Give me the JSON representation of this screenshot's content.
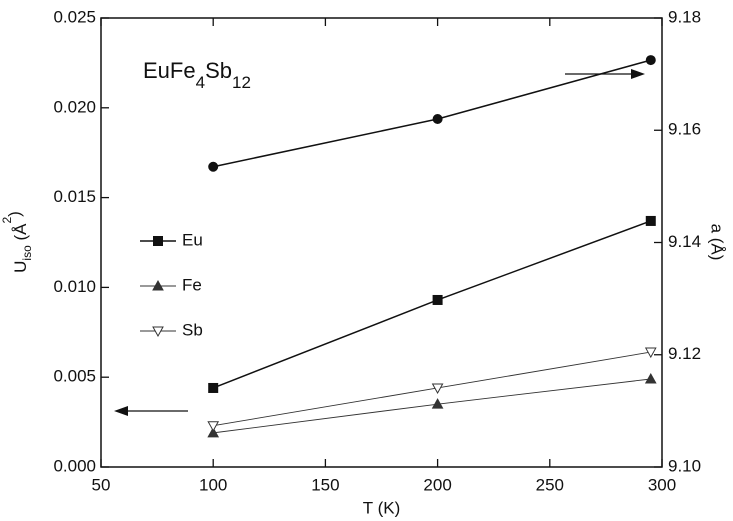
{
  "chart_data": {
    "type": "line",
    "annotation": [
      "EuFe",
      "4",
      "Sb",
      "12"
    ],
    "xlabel": "T (K)",
    "ylabel": [
      "U",
      "iso",
      " (Å",
      "2",
      ")"
    ],
    "y2label": "a (Å)",
    "x": [
      100,
      200,
      295
    ],
    "xlim": [
      50,
      300
    ],
    "xticks": [
      50,
      100,
      150,
      200,
      250,
      300
    ],
    "ylim": [
      0,
      0.025
    ],
    "yticks": [
      {
        "value": 0,
        "label": "0.000"
      },
      {
        "value": 0.005,
        "label": "0.005"
      },
      {
        "value": 0.01,
        "label": "0.010"
      },
      {
        "value": 0.015,
        "label": "0.015"
      },
      {
        "value": 0.02,
        "label": "0.020"
      },
      {
        "value": 0.025,
        "label": "0.025"
      }
    ],
    "y2lim": [
      9.1,
      9.18
    ],
    "y2ticks": [
      {
        "value": 9.1,
        "label": "9.10"
      },
      {
        "value": 9.12,
        "label": "9.12"
      },
      {
        "value": 9.14,
        "label": "9.14"
      },
      {
        "value": 9.16,
        "label": "9.16"
      },
      {
        "value": 9.18,
        "label": "9.18"
      }
    ],
    "series": [
      {
        "name": "Eu",
        "color": "#111111",
        "marker": "square",
        "values": [
          0.0044,
          0.0093,
          0.0137
        ]
      },
      {
        "name": "Fe",
        "color": "#333333",
        "marker": "triangle-up",
        "values": [
          0.0019,
          0.0035,
          0.0049
        ]
      },
      {
        "name": "Sb",
        "color": "#333333",
        "marker": "triangle-down-open",
        "values": [
          0.0023,
          0.0044,
          0.0064
        ]
      },
      {
        "color": "#111111",
        "marker": "circle",
        "axis": "y2",
        "values": [
          9.1535,
          9.162,
          9.1725
        ]
      }
    ]
  }
}
